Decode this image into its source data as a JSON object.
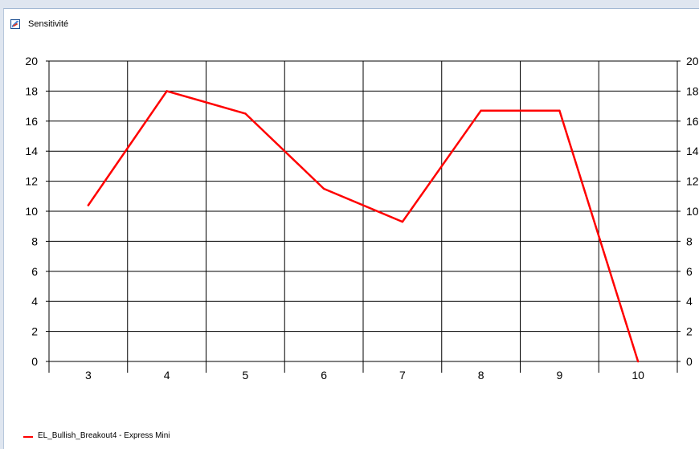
{
  "window": {
    "title": "Sensitivité",
    "icon": "chart-window-icon"
  },
  "chart_data": {
    "type": "line",
    "title": "",
    "xlabel": "",
    "ylabel": "",
    "x": [
      3,
      4,
      5,
      6,
      7,
      8,
      9,
      10
    ],
    "series": [
      {
        "name": "EL_Bullish_Breakout4 - Express Mini",
        "color": "#ff0000",
        "values": [
          10.4,
          18.0,
          16.5,
          11.5,
          9.3,
          16.7,
          16.7,
          0.0
        ]
      }
    ],
    "ylim": [
      0,
      20
    ],
    "yticks": [
      0,
      2,
      4,
      6,
      8,
      10,
      12,
      14,
      16,
      18,
      20
    ],
    "right_axis_ticks": [
      0,
      2,
      4,
      6,
      8,
      10,
      12,
      14,
      16,
      18,
      20
    ],
    "grid": true,
    "legend_position": "bottom-left"
  },
  "legend": {
    "label": "EL_Bullish_Breakout4 - Express Mini"
  }
}
